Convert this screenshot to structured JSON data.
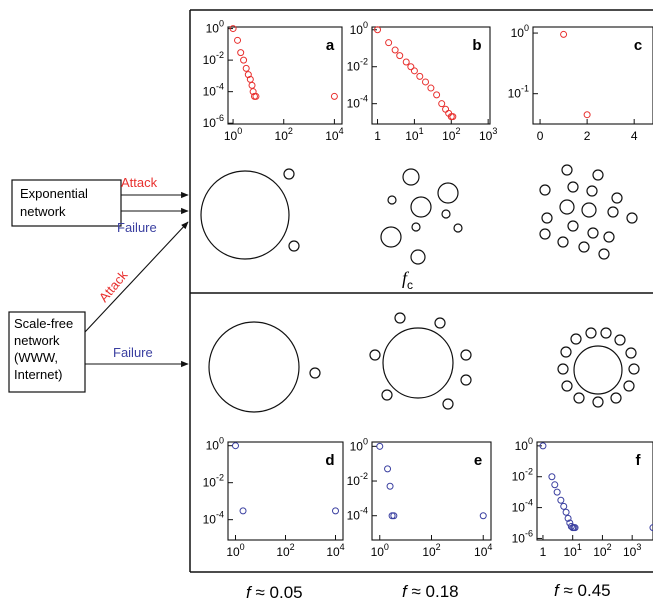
{
  "left_boxes": {
    "exponential": [
      "Exponential",
      "network"
    ],
    "scale_free": [
      "Scale-free",
      "network",
      "(WWW,",
      "Internet)"
    ]
  },
  "arrows": {
    "attack_exp": "Attack",
    "failure_exp": "Failure",
    "attack_sf": "Attack",
    "failure_sf": "Failure"
  },
  "colors": {
    "attack": "#e8302e",
    "failure": "#3a3fa0",
    "ink": "#111111"
  },
  "panels": {
    "a": {
      "letter": "a",
      "yticks": [
        "10",
        "10",
        "10",
        "10"
      ],
      "yexp": [
        "0",
        "-2",
        "-4",
        "-6"
      ],
      "xticks": [
        "10",
        "10",
        "10"
      ],
      "xexp": [
        "0",
        "2",
        "4"
      ]
    },
    "b": {
      "letter": "b",
      "yticks": [
        "10",
        "10",
        "10"
      ],
      "yexp": [
        "0",
        "-2",
        "-4"
      ],
      "xticks": [
        "1",
        "10",
        "10",
        "10"
      ],
      "xexp": [
        "",
        "1",
        "2",
        "3"
      ]
    },
    "c": {
      "letter": "c",
      "yticks": [
        "10",
        "10"
      ],
      "yexp": [
        "0",
        "-1"
      ],
      "xticks": [
        "0",
        "2",
        "4"
      ]
    },
    "d": {
      "letter": "d",
      "yticks": [
        "10",
        "10",
        "10"
      ],
      "yexp": [
        "0",
        "-2",
        "-4"
      ],
      "xticks": [
        "10",
        "10",
        "10"
      ],
      "xexp": [
        "0",
        "2",
        "4"
      ]
    },
    "e": {
      "letter": "e",
      "yticks": [
        "10",
        "10",
        "10"
      ],
      "yexp": [
        "0",
        "-2",
        "-4"
      ],
      "xticks": [
        "10",
        "10",
        "10"
      ],
      "xexp": [
        "0",
        "2",
        "4"
      ]
    },
    "f": {
      "letter": "f",
      "yticks": [
        "10",
        "10",
        "10",
        "10"
      ],
      "yexp": [
        "0",
        "-2",
        "-4",
        "-6"
      ],
      "xticks": [
        "1",
        "10",
        "10",
        "10"
      ],
      "xexp": [
        "",
        "1",
        "2",
        "3"
      ]
    }
  },
  "fc_label": {
    "main": "f",
    "sub": "c"
  },
  "f_labels": [
    {
      "f": "f",
      "rest": " ≈ 0.05"
    },
    {
      "f": "f",
      "rest": " ≈ 0.18"
    },
    {
      "f": "f",
      "rest": " ≈ 0.45"
    }
  ],
  "chart_data": [
    {
      "panel": "a",
      "type": "scatter",
      "series_color": "attack",
      "x": [
        1,
        1.5,
        2,
        2.6,
        3.3,
        4,
        4.8,
        5.6,
        6.2,
        7,
        8,
        10000
      ],
      "y": [
        1,
        0.18,
        0.03,
        0.01,
        0.003,
        0.0012,
        0.0006,
        0.00025,
        0.0001,
        5e-05,
        5e-05,
        5e-05
      ]
    },
    {
      "panel": "b",
      "type": "scatter",
      "series_color": "attack",
      "x": [
        1,
        2,
        3,
        4,
        6,
        8,
        10,
        14,
        20,
        28,
        40,
        55,
        70,
        85,
        100,
        110
      ],
      "y": [
        1,
        0.2,
        0.08,
        0.04,
        0.018,
        0.01,
        0.006,
        0.003,
        0.0015,
        0.0007,
        0.0003,
        0.0001,
        5e-05,
        3e-05,
        2e-05,
        2e-05
      ]
    },
    {
      "panel": "c",
      "type": "scatter",
      "series_color": "attack",
      "x": [
        1,
        2
      ],
      "y": [
        0.95,
        0.045
      ]
    },
    {
      "panel": "d",
      "type": "scatter",
      "series_color": "failure",
      "x": [
        1,
        2,
        10000
      ],
      "y": [
        1,
        0.0003,
        0.0003
      ]
    },
    {
      "panel": "e",
      "type": "scatter",
      "series_color": "failure",
      "x": [
        1,
        2,
        2.5,
        3,
        3.5,
        10000
      ],
      "y": [
        1,
        0.05,
        0.005,
        0.0001,
        0.0001,
        0.0001
      ]
    },
    {
      "panel": "f",
      "type": "scatter",
      "series_color": "failure",
      "x": [
        1,
        2,
        2.5,
        3,
        4,
        5,
        6,
        7,
        8,
        9,
        10,
        11,
        12,
        5000
      ],
      "y": [
        1,
        0.01,
        0.003,
        0.001,
        0.0003,
        0.00012,
        5e-05,
        2e-05,
        1e-05,
        6e-06,
        5e-06,
        5e-06,
        5e-06,
        5e-06
      ]
    }
  ]
}
